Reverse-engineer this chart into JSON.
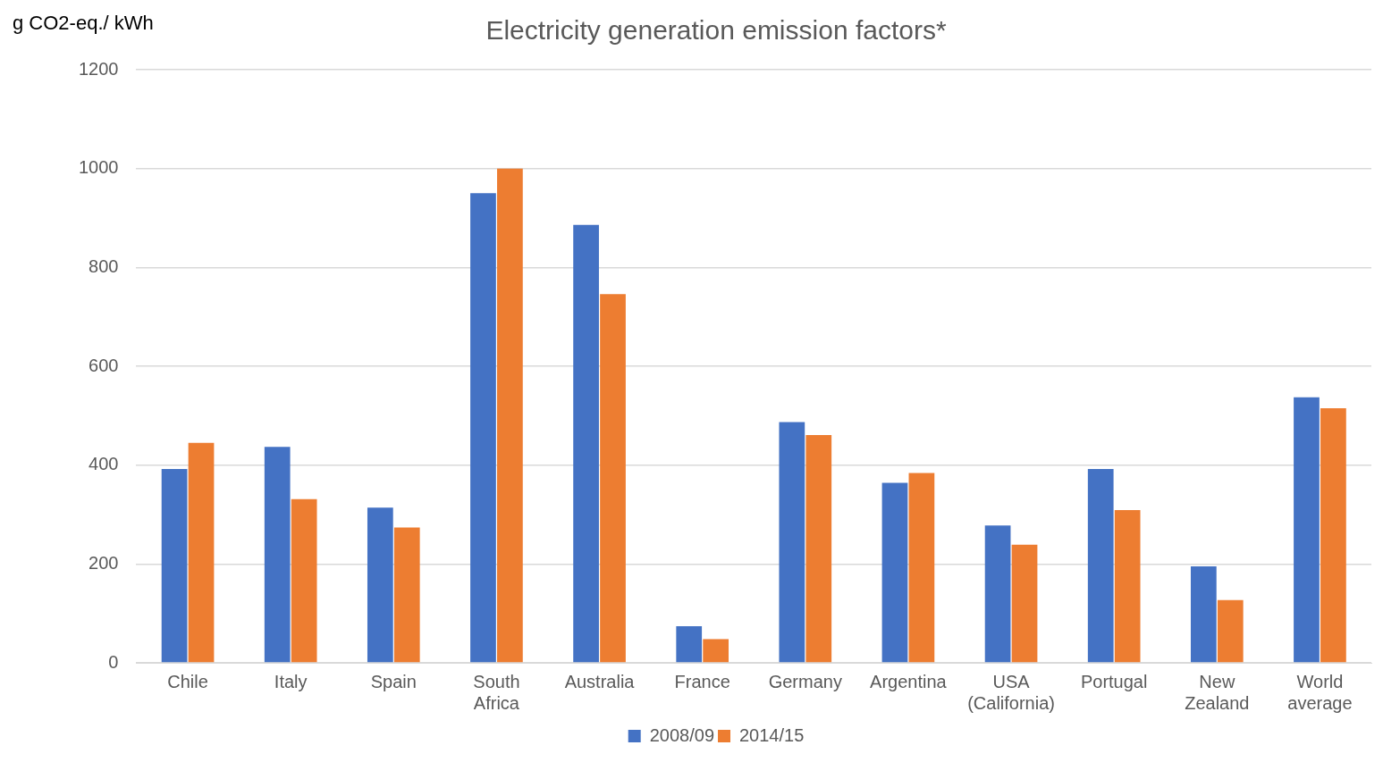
{
  "chart_data": {
    "type": "bar",
    "title": "Electricity generation emission factors*",
    "ylabel": "g CO2-eq./ kWh",
    "categories": [
      "Chile",
      "Italy",
      "Spain",
      "South Africa",
      "Australia",
      "France",
      "Germany",
      "Argentina",
      "USA (California)",
      "Portugal",
      "New Zealand",
      "World average"
    ],
    "series": [
      {
        "name": "2008/09",
        "color": "#4472c4",
        "values": [
          392,
          437,
          314,
          950,
          886,
          74,
          487,
          364,
          278,
          392,
          195,
          537
        ]
      },
      {
        "name": "2014/15",
        "color": "#ed7d31",
        "values": [
          445,
          331,
          274,
          1000,
          746,
          48,
          461,
          384,
          239,
          309,
          127,
          515
        ]
      }
    ],
    "ylim": [
      0,
      1200
    ],
    "yticks": [
      0,
      200,
      400,
      600,
      800,
      1000,
      1200
    ],
    "grid": "y",
    "legend": "bottom"
  }
}
